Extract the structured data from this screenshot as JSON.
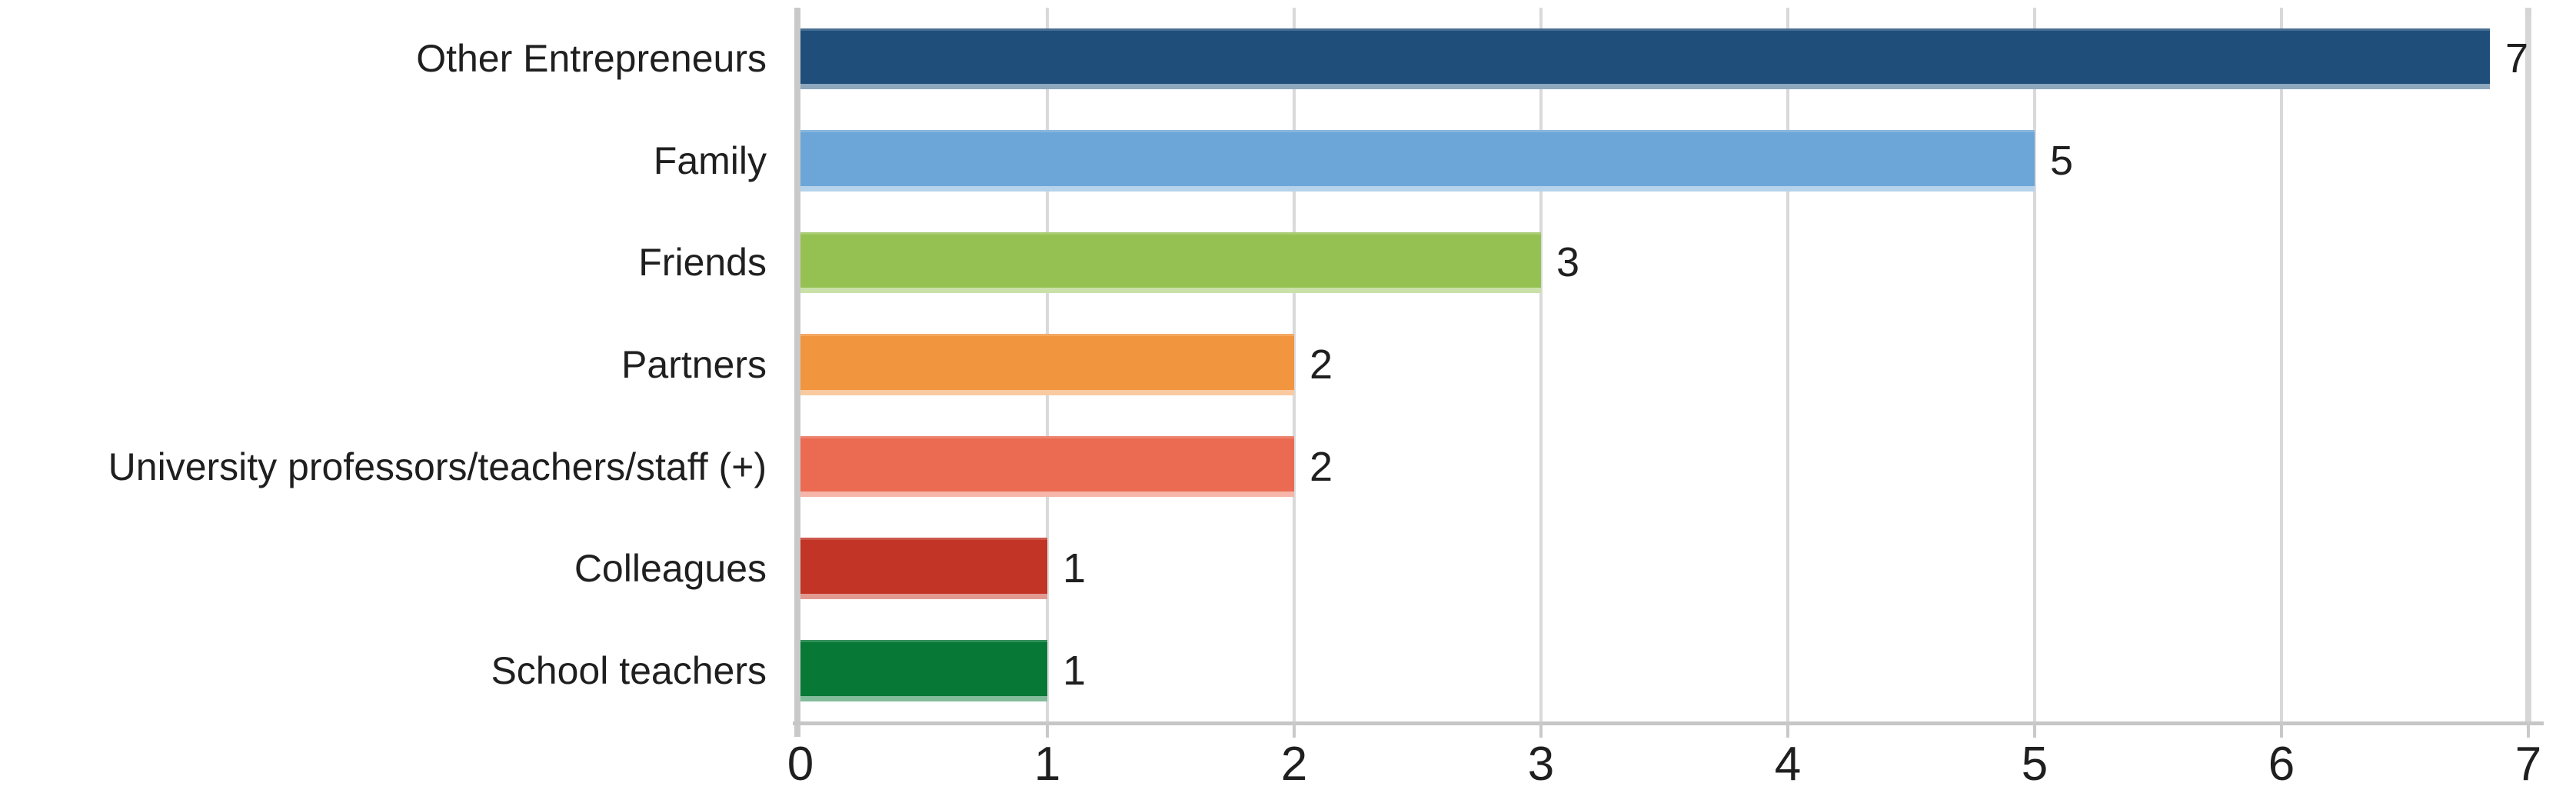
{
  "chart_data": {
    "type": "bar",
    "orientation": "horizontal",
    "title": "",
    "xlabel": "",
    "ylabel": "",
    "categories": [
      "Other Entrepreneurs",
      "Family",
      "Friends",
      "Partners",
      "University professors/teachers/staff (+)",
      "Colleagues",
      "School teachers"
    ],
    "values": [
      7,
      5,
      3,
      2,
      2,
      1,
      1
    ],
    "value_labels": [
      "7",
      "5",
      "3",
      "2",
      "2",
      "1",
      "1"
    ],
    "bar_colors": [
      "#1F4E7B",
      "#6CA6D8",
      "#95C153",
      "#F2953F",
      "#EA6A52",
      "#C23425",
      "#077836"
    ],
    "xlim": [
      0,
      7
    ],
    "x_ticks": [
      "0",
      "1",
      "2",
      "3",
      "4",
      "5",
      "6",
      "7"
    ],
    "grid": "vertical-gridlines-on",
    "legend": "none",
    "colors": {
      "gridline": "#D9D9D9",
      "axis_line": "#C6C6C6",
      "text": "#1F1F1F",
      "background": "#FFFFFF"
    }
  }
}
